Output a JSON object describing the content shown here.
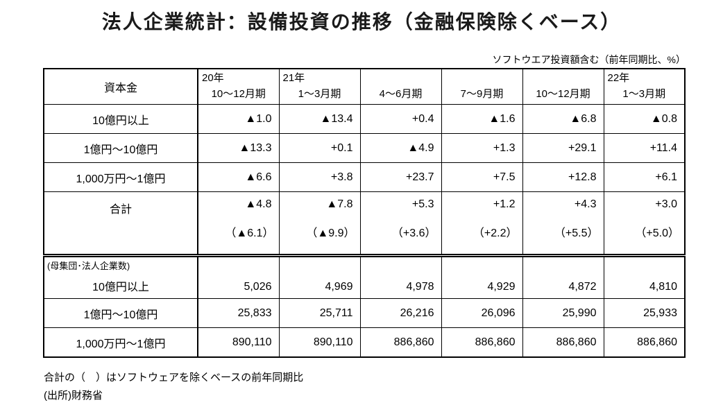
{
  "title": "法人企業統計：設備投資の推移（金融保険除くベース）",
  "subtitle": "ソフトウエア投資額含む（前年同期比、%）",
  "table": {
    "header": {
      "capital_label": "資本金",
      "columns": [
        {
          "year": "20年",
          "period": "10～12月期"
        },
        {
          "year": "21年",
          "period": "1～3月期"
        },
        {
          "year": "",
          "period": "4～6月期"
        },
        {
          "year": "",
          "period": "7～9月期"
        },
        {
          "year": "",
          "period": "10～12月期"
        },
        {
          "year": "22年",
          "period": "1～3月期"
        }
      ]
    },
    "growth_rows": [
      {
        "label": "10億円以上",
        "values": [
          "▲1.0",
          "▲13.4",
          "+0.4",
          "▲1.6",
          "▲6.8",
          "▲0.8"
        ]
      },
      {
        "label": "1億円～10億円",
        "values": [
          "▲13.3",
          "+0.1",
          "▲4.9",
          "+1.3",
          "+29.1",
          "+11.4"
        ]
      },
      {
        "label": "1,000万円～1億円",
        "values": [
          "▲6.6",
          "+3.8",
          "+23.7",
          "+7.5",
          "+12.8",
          "+6.1"
        ]
      }
    ],
    "total_row": {
      "label": "合計",
      "values": [
        "▲4.8",
        "▲7.8",
        "+5.3",
        "+1.2",
        "+4.3",
        "+3.0"
      ],
      "sub_values": [
        "（▲6.1）",
        "（▲9.9）",
        "（+3.6）",
        "（+2.2）",
        "（+5.5）",
        "（+5.0）"
      ]
    },
    "population_section": {
      "note": "(母集団･法人企業数)",
      "rows": [
        {
          "label": "10億円以上",
          "values": [
            "5,026",
            "4,969",
            "4,978",
            "4,929",
            "4,872",
            "4,810"
          ]
        },
        {
          "label": "1億円～10億円",
          "values": [
            "25,833",
            "25,711",
            "26,216",
            "26,096",
            "25,990",
            "25,933"
          ]
        },
        {
          "label": "1,000万円～1億円",
          "values": [
            "890,110",
            "890,110",
            "886,860",
            "886,860",
            "886,860",
            "886,860"
          ]
        }
      ]
    }
  },
  "footnotes": {
    "line1": "合計の（　）はソフトウェアを除くベースの前年同期比",
    "line2": "(出所)財務省"
  }
}
